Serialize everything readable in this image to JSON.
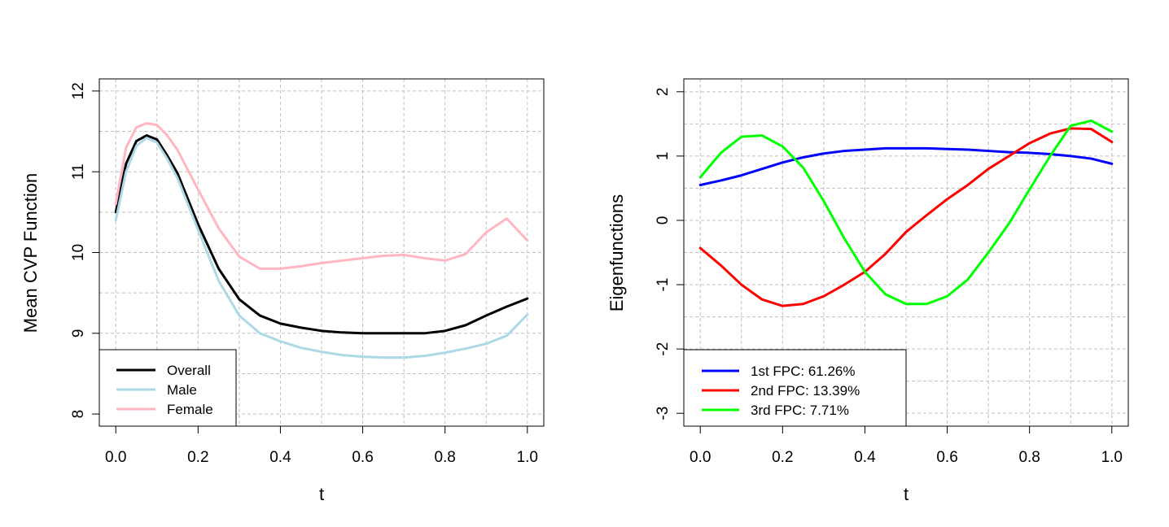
{
  "chart_data": [
    {
      "type": "line",
      "xlabel": "t",
      "ylabel": "Mean CVP Function",
      "xlim": [
        0,
        1
      ],
      "ylim": [
        7.85,
        12.15
      ],
      "x_ticks": [
        0,
        0.2,
        0.4,
        0.6,
        0.8,
        1
      ],
      "x_tick_labels": [
        "0.0",
        "0.2",
        "0.4",
        "0.6",
        "0.8",
        "1.0"
      ],
      "y_ticks": [
        8,
        9,
        10,
        11,
        12
      ],
      "y_tick_labels": [
        "8",
        "9",
        "10",
        "11",
        "12"
      ],
      "grid": true,
      "legend_position": "bottom-left",
      "x": [
        0,
        0.025,
        0.05,
        0.075,
        0.1,
        0.125,
        0.15,
        0.2,
        0.25,
        0.3,
        0.35,
        0.4,
        0.45,
        0.5,
        0.55,
        0.6,
        0.65,
        0.7,
        0.75,
        0.8,
        0.85,
        0.9,
        0.95,
        1.0
      ],
      "series": [
        {
          "name": "Overall",
          "color": "#000000",
          "values": [
            10.5,
            11.1,
            11.38,
            11.45,
            11.4,
            11.2,
            10.98,
            10.35,
            9.8,
            9.42,
            9.22,
            9.12,
            9.07,
            9.03,
            9.01,
            9.0,
            9.0,
            9.0,
            9.0,
            9.03,
            9.1,
            9.22,
            9.33,
            9.43
          ]
        },
        {
          "name": "Male",
          "color": "#add8e6",
          "values": [
            10.4,
            11.0,
            11.32,
            11.42,
            11.36,
            11.16,
            10.92,
            10.28,
            9.65,
            9.22,
            9.0,
            8.9,
            8.82,
            8.77,
            8.73,
            8.71,
            8.7,
            8.7,
            8.72,
            8.76,
            8.81,
            8.87,
            8.97,
            9.23
          ]
        },
        {
          "name": "Female",
          "color": "#ffb6c1",
          "values": [
            10.6,
            11.3,
            11.55,
            11.6,
            11.58,
            11.45,
            11.27,
            10.78,
            10.3,
            9.95,
            9.8,
            9.8,
            9.83,
            9.87,
            9.9,
            9.93,
            9.96,
            9.97,
            9.93,
            9.9,
            9.98,
            10.25,
            10.42,
            10.15
          ]
        }
      ]
    },
    {
      "type": "line",
      "xlabel": "t",
      "ylabel": "Eigenfunctions",
      "xlim": [
        0,
        1
      ],
      "ylim": [
        -3.2,
        2.2
      ],
      "x_ticks": [
        0,
        0.2,
        0.4,
        0.6,
        0.8,
        1
      ],
      "x_tick_labels": [
        "0.0",
        "0.2",
        "0.4",
        "0.6",
        "0.8",
        "1.0"
      ],
      "y_ticks": [
        -3,
        -2,
        -1,
        0,
        1,
        2
      ],
      "y_tick_labels": [
        "-3",
        "-2",
        "-1",
        "0",
        "1",
        "2"
      ],
      "grid": true,
      "legend_position": "bottom-left",
      "x": [
        0,
        0.05,
        0.1,
        0.15,
        0.2,
        0.25,
        0.3,
        0.35,
        0.4,
        0.45,
        0.5,
        0.55,
        0.6,
        0.65,
        0.7,
        0.75,
        0.8,
        0.85,
        0.9,
        0.95,
        1.0
      ],
      "series": [
        {
          "name": "1st FPC: 61.26%",
          "color": "#0000ff",
          "values": [
            0.55,
            0.62,
            0.7,
            0.8,
            0.9,
            0.98,
            1.04,
            1.08,
            1.1,
            1.12,
            1.12,
            1.12,
            1.11,
            1.1,
            1.08,
            1.06,
            1.05,
            1.03,
            1.0,
            0.96,
            0.88
          ]
        },
        {
          "name": "2nd FPC: 13.39%",
          "color": "#ff0000",
          "values": [
            -0.43,
            -0.7,
            -1.0,
            -1.23,
            -1.33,
            -1.3,
            -1.18,
            -1.0,
            -0.8,
            -0.52,
            -0.18,
            0.08,
            0.33,
            0.55,
            0.8,
            1.0,
            1.2,
            1.35,
            1.43,
            1.42,
            1.22
          ]
        },
        {
          "name": "3rd FPC: 7.71%",
          "color": "#00ff00",
          "values": [
            0.67,
            1.05,
            1.3,
            1.32,
            1.15,
            0.82,
            0.3,
            -0.28,
            -0.8,
            -1.15,
            -1.3,
            -1.3,
            -1.18,
            -0.92,
            -0.5,
            -0.05,
            0.48,
            1.0,
            1.47,
            1.55,
            1.38
          ]
        }
      ]
    }
  ]
}
